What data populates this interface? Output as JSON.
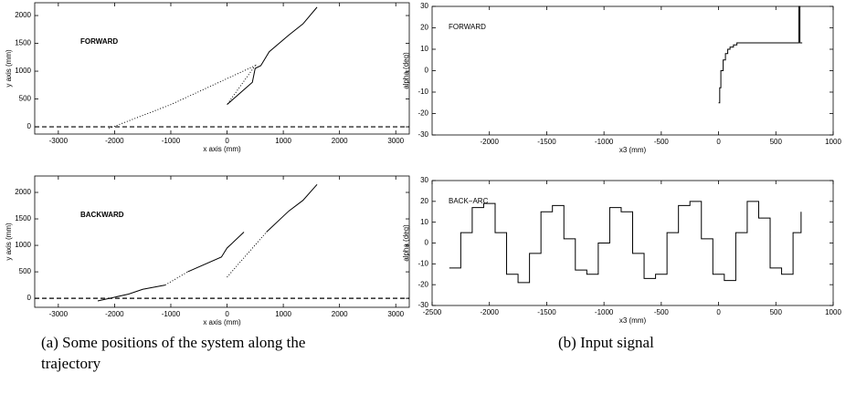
{
  "chart_data": [
    {
      "type": "line",
      "annotation": "FORWARD",
      "xlabel": "x axis   (mm)",
      "ylabel": "y axis   (mm)",
      "xlim": [
        -3420,
        3240
      ],
      "ylim": [
        -130,
        2230
      ],
      "xticks": [
        -3000,
        -2000,
        -1000,
        0,
        1000,
        2000,
        3000
      ],
      "yticks": [
        0,
        500,
        1000,
        1500,
        2000
      ],
      "series": [
        {
          "style": "solid",
          "color": "#000000",
          "x": [
            0,
            450,
            500,
            600,
            750,
            1100,
            1350,
            1600
          ],
          "values": [
            400,
            800,
            1050,
            1100,
            1350,
            1650,
            1850,
            2150
          ]
        },
        {
          "style": "dotted",
          "color": "#000000",
          "x": [
            -2100,
            -1000,
            500,
            0
          ],
          "values": [
            -30,
            400,
            1100,
            400
          ]
        },
        {
          "style": "dashed",
          "color": "#000000",
          "x": [
            -3420,
            3240
          ],
          "values": [
            0,
            0
          ]
        }
      ]
    },
    {
      "type": "line",
      "annotation": "BACKWARD",
      "xlabel": "x axis   (mm)",
      "ylabel": "y axis   (mm)",
      "xlim": [
        -3420,
        3240
      ],
      "ylim": [
        -170,
        2310
      ],
      "xticks": [
        -3000,
        -2000,
        -1000,
        0,
        1000,
        2000,
        3000
      ],
      "yticks": [
        0,
        500,
        1000,
        1500,
        2000
      ],
      "series": [
        {
          "style": "solid",
          "color": "#000000",
          "x": [
            -2300,
            -1750,
            -1500,
            -1100,
            null,
            -700,
            -100,
            0,
            300,
            null,
            700,
            1100,
            1350,
            1600
          ],
          "values": [
            -50,
            80,
            170,
            250,
            null,
            500,
            780,
            950,
            1250,
            null,
            1250,
            1650,
            1850,
            2150
          ]
        },
        {
          "style": "dotted",
          "color": "#000000",
          "x": [
            -1100,
            -700,
            null,
            0,
            700
          ],
          "values": [
            250,
            500,
            null,
            400,
            1250
          ]
        },
        {
          "style": "dashed",
          "color": "#000000",
          "x": [
            -3420,
            3240
          ],
          "values": [
            0,
            0
          ]
        }
      ]
    },
    {
      "type": "line",
      "annotation": "FORWARD",
      "xlabel": "x3   (mm)",
      "ylabel": "alpha   (deg)",
      "xlim": [
        -2500,
        1000
      ],
      "ylim": [
        -30,
        30
      ],
      "xticks": [
        -2000,
        -1500,
        -1000,
        -500,
        0,
        500,
        1000
      ],
      "yticks": [
        -30,
        -20,
        -10,
        0,
        10,
        20,
        30
      ],
      "series": [
        {
          "style": "step",
          "color": "#000000",
          "x": [
            0,
            10,
            20,
            40,
            60,
            80,
            100,
            130,
            160,
            200,
            250,
            700,
            710,
            730
          ],
          "values": [
            -15,
            -8,
            0,
            5,
            8,
            10,
            11,
            12,
            13,
            13,
            13,
            30,
            13,
            13
          ]
        }
      ]
    },
    {
      "type": "line",
      "annotation": "BACK−ARC",
      "xlabel": "x3   (mm)",
      "ylabel": "alpha   (deg)",
      "xlim": [
        -2500,
        1000
      ],
      "ylim": [
        -30,
        30
      ],
      "xticks": [
        -2500,
        -2000,
        -1500,
        -1000,
        -500,
        0,
        500,
        1000
      ],
      "yticks": [
        -30,
        -20,
        -10,
        0,
        10,
        20,
        30
      ],
      "series": [
        {
          "style": "step",
          "color": "#000000",
          "x": [
            -2350,
            -2250,
            -2150,
            -2050,
            -1950,
            -1850,
            -1750,
            -1650,
            -1550,
            -1450,
            -1350,
            -1250,
            -1150,
            -1050,
            -950,
            -850,
            -750,
            -650,
            -550,
            -450,
            -350,
            -250,
            -150,
            -50,
            50,
            150,
            250,
            350,
            450,
            550,
            650,
            720
          ],
          "values": [
            -12,
            5,
            17,
            19,
            5,
            -15,
            -19,
            -5,
            15,
            18,
            2,
            -13,
            -15,
            0,
            17,
            15,
            -5,
            -17,
            -15,
            5,
            18,
            20,
            2,
            -15,
            -18,
            5,
            20,
            12,
            -12,
            -15,
            5,
            15
          ]
        }
      ]
    }
  ],
  "captions": [
    "(a) Some positions of the system along the trajectory",
    "(b) Input signal"
  ]
}
